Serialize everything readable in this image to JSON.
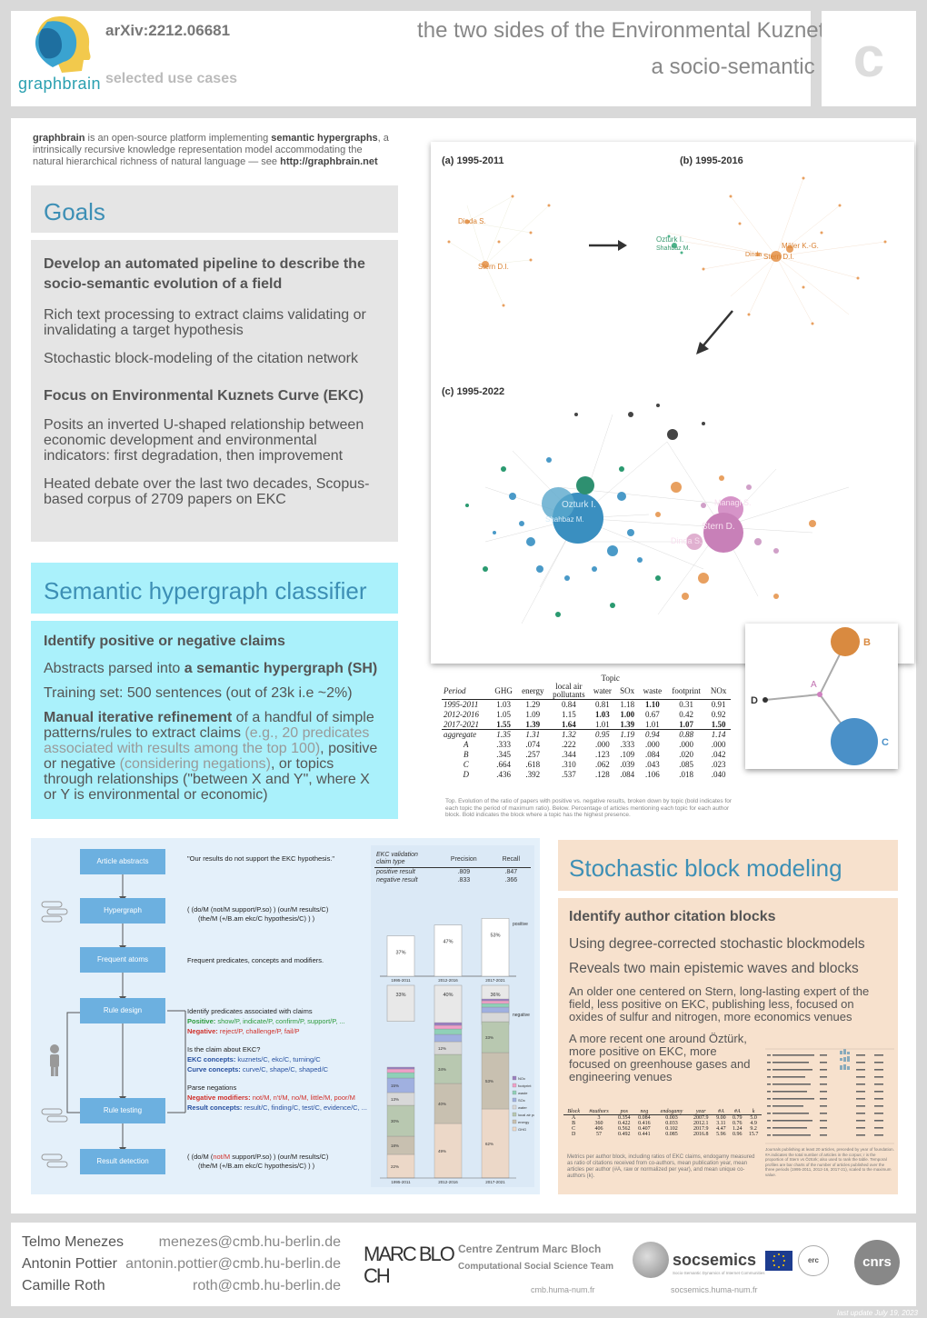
{
  "header": {
    "logo_text": "graphbrain",
    "arxiv": "arXiv:2212.06681",
    "section": "selected use cases",
    "title_line1": "the two sides of the Environmental Kuznets Curve",
    "title_line2": "a socio-semantic analysis",
    "corner_letter": "c"
  },
  "intro": {
    "brand": "graphbrain",
    "text1": " is an open-source platform implementing ",
    "highlight": "semantic hypergraphs",
    "text2": ", a intrinsically recursive knowledge representation model accommodating the natural hierarchical richness of natural language — see ",
    "url": "http://graphbrain.net"
  },
  "goals": {
    "title": "Goals",
    "sub1": "Develop an automated pipeline to describe the socio-semantic evolution of a field",
    "p1": "Rich text processing to extract claims validating or invalidating a target hypothesis",
    "p2": "Stochastic block-modeling of the citation network",
    "sub2": "Focus on Environmental Kuznets Curve (EKC)",
    "p3": "Posits an inverted U-shaped relationship between economic development and environmental indicators: first degradation, then improvement",
    "p4": "Heated debate over the last two decades, Scopus-based corpus of 2709 papers on EKC"
  },
  "shc": {
    "title": "Semantic hypergraph classifier",
    "sub": "Identify positive or negative claims",
    "p1a": "Abstracts parsed into ",
    "p1b": "a semantic hypergraph (SH)",
    "p2": "Training set: 500 sentences (out of 23k i.e ~2%)",
    "p3a": "Manual iterative refinement",
    "p3b": " of a handful of simple patterns/rules to extract claims ",
    "p3c": "(e.g., 20 predicates associated with results among the top 100)",
    "p3d": ", positive or negative ",
    "p3e": "(considering negations)",
    "p3f": ", or topics through relationships (\"between X and Y\", where X or Y is environmental or economic)"
  },
  "network": {
    "panel_a": "(a) 1995-2011",
    "panel_b": "(b) 1995-2016",
    "panel_c": "(c) 1995-2022",
    "labels": {
      "dinda": "Dinda S.",
      "stern": "Stern D.I.",
      "ozturk": "Ozturk I.",
      "shahbaz": "Shahbaz M.",
      "managi": "Managi S.",
      "sternc": "Stern D.",
      "dindac": "Dinda S.",
      "ozturkc": "Ozturk I.",
      "shahbazc": "Shahbaz M.",
      "maddison": "Mäler K.-G.",
      "dindab": "Dinda",
      "sternb": "Stern D.I."
    },
    "hyper_labels": {
      "a": "A",
      "b": "B",
      "c": "C",
      "d": "D"
    }
  },
  "topic_table": {
    "group_header": "Topic",
    "columns": [
      "Period",
      "GHG",
      "energy",
      "local air pollutants",
      "water",
      "SOx",
      "waste",
      "footprint",
      "NOx"
    ],
    "periods": [
      {
        "label": "1995-2011",
        "values": [
          "1.03",
          "1.29",
          "0.84",
          "0.81",
          "1.18",
          "1.10",
          "0.31",
          "0.91"
        ]
      },
      {
        "label": "2012-2016",
        "values": [
          "1.05",
          "1.09",
          "1.15",
          "1.03",
          "1.00",
          "0.67",
          "0.42",
          "0.92"
        ]
      },
      {
        "label": "2017-2021",
        "values": [
          "1.55",
          "1.39",
          "1.64",
          "1.01",
          "1.39",
          "1.01",
          "1.07",
          "1.50"
        ]
      }
    ],
    "aggregate": {
      "label": "aggregate",
      "values": [
        "1.35",
        "1.31",
        "1.32",
        "0.95",
        "1.19",
        "0.94",
        "0.88",
        "1.14"
      ]
    },
    "blocks": [
      {
        "label": "A",
        "values": [
          ".333",
          ".074",
          ".222",
          ".000",
          ".333",
          ".000",
          ".000",
          ".000"
        ]
      },
      {
        "label": "B",
        "values": [
          ".345",
          ".257",
          ".344",
          ".123",
          ".109",
          ".084",
          ".020",
          ".042"
        ]
      },
      {
        "label": "C",
        "values": [
          ".664",
          ".618",
          ".310",
          ".062",
          ".039",
          ".043",
          ".085",
          ".023"
        ]
      },
      {
        "label": "D",
        "values": [
          ".436",
          ".392",
          ".537",
          ".128",
          ".084",
          ".106",
          ".018",
          ".040"
        ]
      }
    ],
    "caption": "Top. Evolution of the ratio of papers with positive vs. negative results, broken down by topic (bold indicates for each topic the period of maximum ratio). Below. Percentage of articles mentioning each topic for each author block. Bold indicates the block where a topic has the highest presence."
  },
  "pipeline": {
    "steps": [
      "Article abstracts",
      "Hypergraph",
      "Frequent atoms",
      "Rule design",
      "Rule testing",
      "Result detection"
    ],
    "quote": "\"Our results do not support the EKC hypothesis.\"",
    "hyper1": "( (do/M (not/M support/P.so) ) (our/M results/C)",
    "hyper2": "(the/M (+/B.am ekc/C hypothesis/C) ) )",
    "frequent": "Frequent predicates, concepts and modifiers.",
    "rule_title": "Identify predicates associated with claims",
    "positive_label": "Positive:",
    "positive": " show/P, indicate/P, confirm/P, support/P, ...",
    "negative_label": "Negative:",
    "negative": " reject/P, challenge/P, fail/P",
    "ekc_q": "Is the claim about EKC?",
    "ekc_label": "EKC concepts:",
    "ekc": " kuznets/C, ekc/C, turning/C",
    "curve_label": "Curve concepts:",
    "curve": " curve/C, shape/C, shaped/C",
    "parse": "Parse negations",
    "negmod_label": "Negative modifiers:",
    "negmod": " not/M, n't/M, no/M, little/M, poor/M",
    "result_label": "Result concepts:",
    "result": " result/C, finding/C, test/C, evidence/C, ...",
    "final1a": "( (do/M (",
    "final1b": "not/M",
    "final1c": " support/P.so) ) (our/M results/C)",
    "final2": "(the/M (+/B.am ekc/C hypothesis/C) ) )"
  },
  "validation": {
    "headers": [
      "EKC validation claim type",
      "Precision",
      "Recall"
    ],
    "rows": [
      {
        "type": "positive result",
        "precision": ".809",
        "recall": ".847"
      },
      {
        "type": "negative result",
        "precision": ".833",
        "recall": ".366"
      }
    ]
  },
  "result_bars": {
    "periods": [
      "1995-2011",
      "2012-2016",
      "2017-2021"
    ],
    "positive": [
      37,
      47,
      53
    ],
    "negative": [
      33,
      40,
      36
    ],
    "positive_label": "positive",
    "negative_label": "negative",
    "pct_labels_pos": [
      "37%",
      "47%",
      "53%"
    ],
    "pct_labels_neg": [
      "33%",
      "40%",
      "36%"
    ]
  },
  "topic_bars": {
    "legend": [
      "NOx",
      "footprint",
      "waste",
      "SOx",
      "water",
      "local air pollutant",
      "energy",
      "GHG"
    ],
    "colors": [
      "#9a7fc0",
      "#f0a0c8",
      "#8fd0b8",
      "#a0b0e0",
      "#d8d8d8",
      "#b8c8b0",
      "#c8c0b0",
      "#ecd8c8"
    ],
    "labels_col1": [
      "22%",
      "18%",
      "30%",
      "13%",
      "15%"
    ],
    "labels_col2": [
      "49%",
      "40%",
      "34%",
      "12%"
    ],
    "labels_col3": [
      "62%",
      "53%",
      "33%"
    ]
  },
  "sbm": {
    "title": "Stochastic block modeling",
    "sub": "Identify author citation blocks",
    "p1": "Using degree-corrected stochastic blockmodels",
    "p2": "Reveals two main epistemic waves and blocks",
    "p3": "An older one centered on Stern, long-lasting expert of the field, less positive on EKC, publishing less, focused on oxides of sulfur and nitrogen, more economics venues",
    "p4": "A more recent one around Öztürk, more positive on EKC, more focused on greenhouse gases and engineering venues"
  },
  "block_table": {
    "columns": [
      "Block",
      "#authors",
      "pos",
      "neg",
      "endogamy",
      "year",
      "#A",
      "#A",
      "k"
    ],
    "rows": [
      [
        "A",
        "3",
        "0.354",
        "0.084",
        "0.003",
        "2007.9",
        "9.00",
        "0.79",
        "5.0"
      ],
      [
        "B",
        "360",
        "0.422",
        "0.416",
        "0.033",
        "2012.1",
        "3.11",
        "0.76",
        "4.9"
      ],
      [
        "C",
        "406",
        "0.562",
        "0.407",
        "0.102",
        "2017.9",
        "4.47",
        "1.24",
        "9.2"
      ],
      [
        "D",
        "57",
        "0.492",
        "0.441",
        "0.085",
        "2016.8",
        "5.96",
        "0.96",
        "15.7"
      ]
    ],
    "caption": "Metrics per author block, including ratios of EKC claims, endogamy measured as ratio of citations received from co-authors, mean publication year, mean articles per author (#A, raw or normalized per year), and mean unique co-authors (k)."
  },
  "journals": {
    "caption": "Journals publishing at least 20 articles, preceded by year of foundation. #A indicates the total number of articles in the corpus; r is the proportion of Stern vs Öztürk; also used to rank the table. Temporal profiles are bar charts of the number of articles published over the three periods (1995-2011, 2012-16, 2017-21), scaled to the maximum value."
  },
  "footer": {
    "authors": [
      "Telmo Menezes",
      "Antonin Pottier",
      "Camille Roth"
    ],
    "emails": [
      "menezes@cmb.hu-berlin.de",
      "antonin.pottier@cmb.hu-berlin.de",
      "roth@cmb.hu-berlin.de"
    ],
    "cmb_logo": "MARC BLOCH",
    "cmb_line1": "Centre Zentrum Marc Bloch",
    "cmb_line2": "Computational Social Science Team",
    "cmb_url": "cmb.huma-num.fr",
    "soc_name": "socsemics",
    "soc_tag": "Socio-Semantic Dynamics of Internet Communities",
    "soc_url": "socsemics.huma-num.fr",
    "erc": "erc",
    "cnrs": "cnrs",
    "last_update": "last update July 19, 2023"
  }
}
